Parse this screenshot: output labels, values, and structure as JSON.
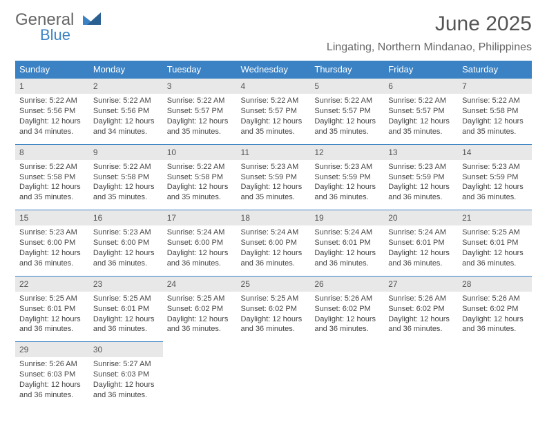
{
  "branding": {
    "name_part1": "General",
    "name_part2": "Blue",
    "text_color": "#666666",
    "accent_color": "#3b82c4"
  },
  "title": "June 2025",
  "location": "Lingating, Northern Mindanao, Philippines",
  "colors": {
    "header_bg": "#3b82c4",
    "header_text": "#ffffff",
    "daynum_bg": "#e8e8e8",
    "daynum_border": "#3b82c4",
    "body_text": "#444444",
    "page_bg": "#ffffff"
  },
  "typography": {
    "title_fontsize": 30,
    "location_fontsize": 16,
    "weekday_fontsize": 13,
    "daynum_fontsize": 12,
    "cell_fontsize": 11,
    "font_family": "Arial"
  },
  "weekdays": [
    "Sunday",
    "Monday",
    "Tuesday",
    "Wednesday",
    "Thursday",
    "Friday",
    "Saturday"
  ],
  "calendar": {
    "type": "table",
    "columns": 7,
    "rows": 5,
    "days": [
      {
        "n": 1,
        "sunrise": "5:22 AM",
        "sunset": "5:56 PM",
        "daylight": "12 hours and 34 minutes."
      },
      {
        "n": 2,
        "sunrise": "5:22 AM",
        "sunset": "5:56 PM",
        "daylight": "12 hours and 34 minutes."
      },
      {
        "n": 3,
        "sunrise": "5:22 AM",
        "sunset": "5:57 PM",
        "daylight": "12 hours and 35 minutes."
      },
      {
        "n": 4,
        "sunrise": "5:22 AM",
        "sunset": "5:57 PM",
        "daylight": "12 hours and 35 minutes."
      },
      {
        "n": 5,
        "sunrise": "5:22 AM",
        "sunset": "5:57 PM",
        "daylight": "12 hours and 35 minutes."
      },
      {
        "n": 6,
        "sunrise": "5:22 AM",
        "sunset": "5:57 PM",
        "daylight": "12 hours and 35 minutes."
      },
      {
        "n": 7,
        "sunrise": "5:22 AM",
        "sunset": "5:58 PM",
        "daylight": "12 hours and 35 minutes."
      },
      {
        "n": 8,
        "sunrise": "5:22 AM",
        "sunset": "5:58 PM",
        "daylight": "12 hours and 35 minutes."
      },
      {
        "n": 9,
        "sunrise": "5:22 AM",
        "sunset": "5:58 PM",
        "daylight": "12 hours and 35 minutes."
      },
      {
        "n": 10,
        "sunrise": "5:22 AM",
        "sunset": "5:58 PM",
        "daylight": "12 hours and 35 minutes."
      },
      {
        "n": 11,
        "sunrise": "5:23 AM",
        "sunset": "5:59 PM",
        "daylight": "12 hours and 35 minutes."
      },
      {
        "n": 12,
        "sunrise": "5:23 AM",
        "sunset": "5:59 PM",
        "daylight": "12 hours and 36 minutes."
      },
      {
        "n": 13,
        "sunrise": "5:23 AM",
        "sunset": "5:59 PM",
        "daylight": "12 hours and 36 minutes."
      },
      {
        "n": 14,
        "sunrise": "5:23 AM",
        "sunset": "5:59 PM",
        "daylight": "12 hours and 36 minutes."
      },
      {
        "n": 15,
        "sunrise": "5:23 AM",
        "sunset": "6:00 PM",
        "daylight": "12 hours and 36 minutes."
      },
      {
        "n": 16,
        "sunrise": "5:23 AM",
        "sunset": "6:00 PM",
        "daylight": "12 hours and 36 minutes."
      },
      {
        "n": 17,
        "sunrise": "5:24 AM",
        "sunset": "6:00 PM",
        "daylight": "12 hours and 36 minutes."
      },
      {
        "n": 18,
        "sunrise": "5:24 AM",
        "sunset": "6:00 PM",
        "daylight": "12 hours and 36 minutes."
      },
      {
        "n": 19,
        "sunrise": "5:24 AM",
        "sunset": "6:01 PM",
        "daylight": "12 hours and 36 minutes."
      },
      {
        "n": 20,
        "sunrise": "5:24 AM",
        "sunset": "6:01 PM",
        "daylight": "12 hours and 36 minutes."
      },
      {
        "n": 21,
        "sunrise": "5:25 AM",
        "sunset": "6:01 PM",
        "daylight": "12 hours and 36 minutes."
      },
      {
        "n": 22,
        "sunrise": "5:25 AM",
        "sunset": "6:01 PM",
        "daylight": "12 hours and 36 minutes."
      },
      {
        "n": 23,
        "sunrise": "5:25 AM",
        "sunset": "6:01 PM",
        "daylight": "12 hours and 36 minutes."
      },
      {
        "n": 24,
        "sunrise": "5:25 AM",
        "sunset": "6:02 PM",
        "daylight": "12 hours and 36 minutes."
      },
      {
        "n": 25,
        "sunrise": "5:25 AM",
        "sunset": "6:02 PM",
        "daylight": "12 hours and 36 minutes."
      },
      {
        "n": 26,
        "sunrise": "5:26 AM",
        "sunset": "6:02 PM",
        "daylight": "12 hours and 36 minutes."
      },
      {
        "n": 27,
        "sunrise": "5:26 AM",
        "sunset": "6:02 PM",
        "daylight": "12 hours and 36 minutes."
      },
      {
        "n": 28,
        "sunrise": "5:26 AM",
        "sunset": "6:02 PM",
        "daylight": "12 hours and 36 minutes."
      },
      {
        "n": 29,
        "sunrise": "5:26 AM",
        "sunset": "6:03 PM",
        "daylight": "12 hours and 36 minutes."
      },
      {
        "n": 30,
        "sunrise": "5:27 AM",
        "sunset": "6:03 PM",
        "daylight": "12 hours and 36 minutes."
      }
    ],
    "labels": {
      "sunrise": "Sunrise:",
      "sunset": "Sunset:",
      "daylight": "Daylight:"
    }
  }
}
